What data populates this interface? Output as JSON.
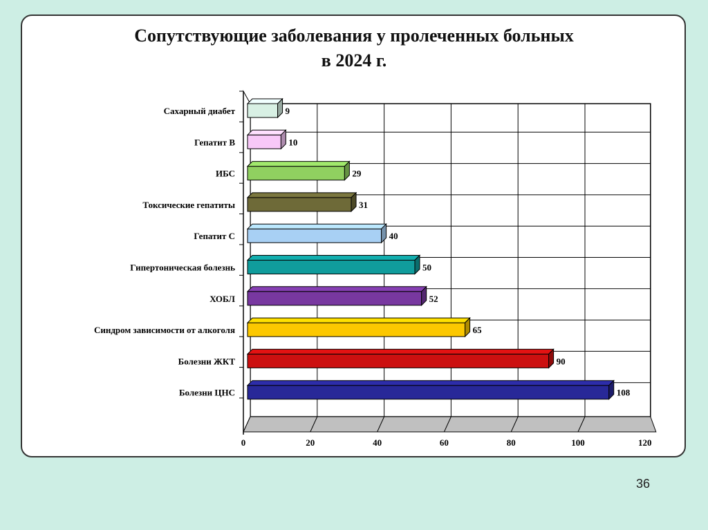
{
  "slide": {
    "title_line1": "Сопутствующие заболевания у пролеченных больных",
    "title_line2": "в 2024 г.",
    "page_number": "36"
  },
  "chart_data": {
    "type": "bar",
    "orientation": "horizontal",
    "style": "3d",
    "title": "Сопутствующие заболевания у пролеченных больных в 2024 г.",
    "xlabel": "",
    "ylabel": "",
    "xlim": [
      0,
      120
    ],
    "ticks": [
      0,
      20,
      40,
      60,
      80,
      100,
      120
    ],
    "grid": true,
    "legend": "none",
    "categories": [
      "Сахарный диабет",
      "Гепатит В",
      "ИБС",
      "Токсические гепатиты",
      "Гепатит С",
      "Гипертоническая болезнь",
      "ХОБЛ",
      "Синдром зависимости от алкоголя",
      "Болезни ЖКТ",
      "Болезни ЦНС"
    ],
    "values": [
      9,
      10,
      29,
      31,
      40,
      50,
      52,
      65,
      90,
      108
    ],
    "colors": [
      "#d8f0e4",
      "#f8c8f8",
      "#90d060",
      "#6e6a38",
      "#a8d0f4",
      "#109c9c",
      "#7838a0",
      "#fcc800",
      "#cc1010",
      "#282898"
    ]
  }
}
